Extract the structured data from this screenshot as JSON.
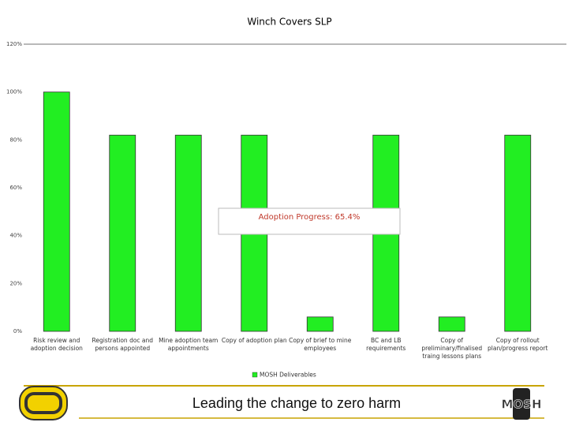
{
  "chart_data": {
    "type": "bar",
    "title": "Winch Covers SLP",
    "categories": [
      "Risk review and adoption decision",
      "Registration doc and persons appointed",
      "Mine adoption team appointments",
      "Copy of adoption plan",
      "Copy of brief to mine employees",
      "BC and LB requirements",
      "Copy of preliminary/finalised traing lessons plans",
      "Copy of rollout plan/progress report"
    ],
    "series": [
      {
        "name": "MOSH Deliverables",
        "color": "#22ee22",
        "values": [
          100,
          82,
          82,
          82,
          6,
          82,
          6,
          82
        ]
      }
    ],
    "ylim": [
      0,
      120
    ],
    "yticks": [
      {
        "value": 0,
        "label": "0%"
      },
      {
        "value": 20,
        "label": "20%"
      },
      {
        "value": 40,
        "label": "40%"
      },
      {
        "value": 60,
        "label": "60%"
      },
      {
        "value": 80,
        "label": "80%"
      },
      {
        "value": 100,
        "label": "100%"
      },
      {
        "value": 120,
        "label": "120%"
      }
    ],
    "grid": false,
    "annotation": "Adoption Progress: 65.4%",
    "legend": "bottom"
  },
  "footer": {
    "slogan": "Leading the change to zero harm",
    "logo_right": "MOSH"
  }
}
